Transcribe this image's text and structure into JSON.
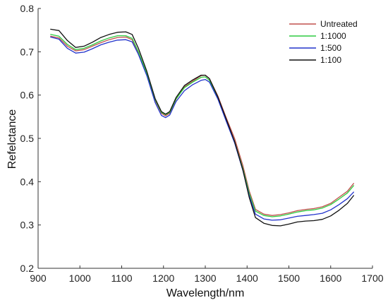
{
  "chart_data": {
    "type": "line",
    "xlabel": "Wavelength/nm",
    "ylabel": "Refelctance",
    "xlim": [
      900,
      1700
    ],
    "ylim": [
      0.2,
      0.8
    ],
    "xticks": [
      900,
      1000,
      1100,
      1200,
      1300,
      1400,
      1500,
      1600,
      1700
    ],
    "yticks": [
      0.2,
      0.3,
      0.4,
      0.5,
      0.6,
      0.7,
      0.8
    ],
    "xtick_labels": [
      "900",
      "1000",
      "1100",
      "1200",
      "1300",
      "1400",
      "1500",
      "1600",
      "1700"
    ],
    "ytick_labels": [
      "0.2",
      "0.3",
      "0.4",
      "0.5",
      "0.6",
      "0.7",
      "0.8"
    ],
    "grid": false,
    "legend_position": "top-right",
    "x": [
      930,
      950,
      970,
      990,
      1010,
      1030,
      1050,
      1070,
      1090,
      1110,
      1125,
      1140,
      1160,
      1180,
      1195,
      1205,
      1215,
      1230,
      1250,
      1270,
      1290,
      1300,
      1310,
      1330,
      1350,
      1370,
      1390,
      1405,
      1420,
      1440,
      1460,
      1480,
      1500,
      1520,
      1540,
      1560,
      1580,
      1600,
      1620,
      1640,
      1655
    ],
    "series": [
      {
        "name": "Untreated",
        "color": "#c0504d",
        "values": [
          0.736,
          0.732,
          0.713,
          0.702,
          0.705,
          0.713,
          0.721,
          0.728,
          0.733,
          0.734,
          0.728,
          0.698,
          0.648,
          0.588,
          0.558,
          0.552,
          0.558,
          0.59,
          0.619,
          0.632,
          0.645,
          0.646,
          0.638,
          0.598,
          0.548,
          0.5,
          0.437,
          0.379,
          0.336,
          0.325,
          0.322,
          0.324,
          0.328,
          0.333,
          0.336,
          0.338,
          0.342,
          0.35,
          0.364,
          0.378,
          0.396
        ]
      },
      {
        "name": "1:1000",
        "color": "#2ecc40",
        "values": [
          0.74,
          0.736,
          0.717,
          0.705,
          0.708,
          0.716,
          0.725,
          0.732,
          0.737,
          0.737,
          0.731,
          0.7,
          0.65,
          0.59,
          0.56,
          0.555,
          0.56,
          0.591,
          0.617,
          0.63,
          0.641,
          0.642,
          0.634,
          0.594,
          0.543,
          0.493,
          0.43,
          0.374,
          0.332,
          0.322,
          0.319,
          0.321,
          0.325,
          0.33,
          0.333,
          0.335,
          0.339,
          0.347,
          0.36,
          0.374,
          0.391
        ]
      },
      {
        "name": "1:500",
        "color": "#2233cc",
        "values": [
          0.734,
          0.729,
          0.708,
          0.697,
          0.699,
          0.707,
          0.716,
          0.722,
          0.727,
          0.728,
          0.723,
          0.694,
          0.645,
          0.583,
          0.553,
          0.548,
          0.554,
          0.585,
          0.61,
          0.624,
          0.634,
          0.636,
          0.63,
          0.591,
          0.54,
          0.49,
          0.426,
          0.368,
          0.325,
          0.314,
          0.311,
          0.312,
          0.316,
          0.32,
          0.322,
          0.324,
          0.327,
          0.335,
          0.347,
          0.361,
          0.376
        ]
      },
      {
        "name": "1:100",
        "color": "#111111",
        "values": [
          0.752,
          0.749,
          0.726,
          0.71,
          0.713,
          0.722,
          0.733,
          0.74,
          0.745,
          0.746,
          0.74,
          0.708,
          0.655,
          0.592,
          0.562,
          0.556,
          0.562,
          0.594,
          0.622,
          0.635,
          0.646,
          0.646,
          0.638,
          0.596,
          0.545,
          0.493,
          0.427,
          0.364,
          0.317,
          0.304,
          0.299,
          0.298,
          0.302,
          0.307,
          0.309,
          0.31,
          0.313,
          0.321,
          0.334,
          0.35,
          0.368
        ]
      }
    ]
  }
}
